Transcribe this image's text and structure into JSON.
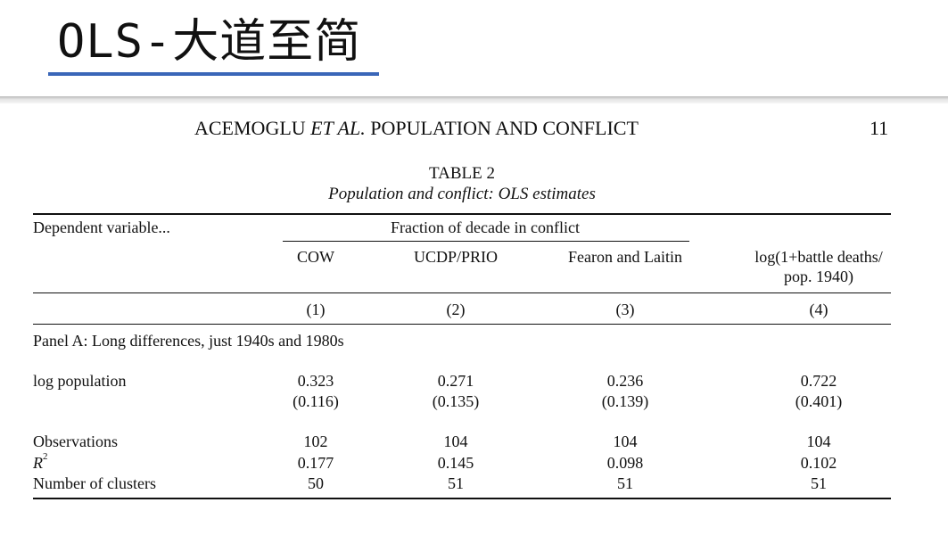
{
  "slide": {
    "title": "OLS-大道至简"
  },
  "running_head": {
    "authors": "ACEMOGLU ",
    "et_al": "ET AL.",
    "rest": " POPULATION AND CONFLICT",
    "page_number": "11"
  },
  "table": {
    "label": "TABLE 2",
    "caption": "Population and conflict: OLS estimates",
    "dep_var_label": "Dependent variable...",
    "span_header": "Fraction of decade in conflict",
    "columns": [
      "COW",
      "UCDP/PRIO",
      "Fearon and Laitin"
    ],
    "col4_line1": "log(1+battle deaths/",
    "col4_line2": "pop. 1940)",
    "col_numbers": [
      "(1)",
      "(2)",
      "(3)",
      "(4)"
    ],
    "panel_label": "Panel A: Long differences, just 1940s and 1980s",
    "rows": {
      "log_pop": {
        "label": "log population",
        "coef": [
          "0.323",
          "0.271",
          "0.236",
          "0.722"
        ],
        "se": [
          "(0.116)",
          "(0.135)",
          "(0.139)",
          "(0.401)"
        ]
      },
      "obs": {
        "label": "Observations",
        "values": [
          "102",
          "104",
          "104",
          "104"
        ]
      },
      "r2": {
        "label_main": "R",
        "label_sup": "2",
        "values": [
          "0.177",
          "0.145",
          "0.098",
          "0.102"
        ]
      },
      "clusters": {
        "label": "Number of clusters",
        "values": [
          "50",
          "51",
          "51",
          "51"
        ]
      }
    }
  }
}
